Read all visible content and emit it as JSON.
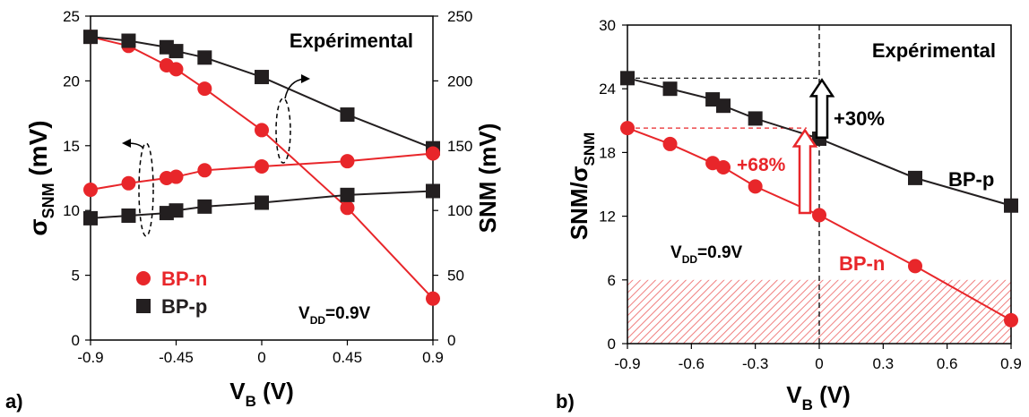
{
  "panel_labels": [
    "a)",
    "b)"
  ],
  "chart_data": [
    {
      "type": "line",
      "panel": "a)",
      "annotation_title": "Expérimental",
      "vdd": {
        "main": "V",
        "sub": "DD",
        "rest": "=0.9V"
      },
      "xlabel": {
        "main": "V",
        "sub": "B",
        "rest": " (V)"
      },
      "ylabel_left": {
        "main": "σ",
        "sub": "SNM",
        "rest": " (mV)"
      },
      "ylabel_right": "SNM (mV)",
      "xlim": [
        -0.9,
        0.9
      ],
      "x_ticks": [
        "-0.9",
        "-0.45",
        "0",
        "0.45",
        "0.9"
      ],
      "ylim_left": [
        0,
        25
      ],
      "y_ticks_left": [
        "0",
        "5",
        "10",
        "15",
        "20",
        "25"
      ],
      "ylim_right": [
        0,
        250
      ],
      "y_ticks_right": [
        "0",
        "50",
        "100",
        "150",
        "200",
        "250"
      ],
      "legend": [
        {
          "label": "BP-n",
          "color": "#e8262a",
          "marker": "circle"
        },
        {
          "label": "BP-p",
          "color": "#231f20",
          "marker": "square"
        }
      ],
      "series": [
        {
          "name": "BP-n",
          "axis": "right",
          "color": "#e8262a",
          "marker": "circle",
          "x": [
            -0.9,
            -0.7,
            -0.5,
            -0.45,
            -0.3,
            0,
            0.45,
            0.9
          ],
          "y": [
            234,
            227,
            212,
            209,
            194,
            162,
            102,
            32
          ]
        },
        {
          "name": "BP-p",
          "axis": "right",
          "color": "#231f20",
          "marker": "square",
          "x": [
            -0.9,
            -0.7,
            -0.5,
            -0.45,
            -0.3,
            0,
            0.45,
            0.9
          ],
          "y": [
            234,
            231,
            226,
            223,
            218,
            203,
            174,
            148
          ]
        },
        {
          "name": "BP-n",
          "axis": "left",
          "color": "#e8262a",
          "marker": "circle",
          "x": [
            -0.9,
            -0.7,
            -0.5,
            -0.45,
            -0.3,
            0,
            0.45,
            0.9
          ],
          "y": [
            11.6,
            12.1,
            12.5,
            12.6,
            13.1,
            13.4,
            13.8,
            14.4
          ]
        },
        {
          "name": "BP-p",
          "axis": "left",
          "color": "#231f20",
          "marker": "square",
          "x": [
            -0.9,
            -0.7,
            -0.5,
            -0.45,
            -0.3,
            0,
            0.45,
            0.9
          ],
          "y": [
            9.4,
            9.6,
            9.8,
            10.0,
            10.3,
            10.6,
            11.2,
            11.5
          ]
        }
      ]
    },
    {
      "type": "line",
      "panel": "b)",
      "annotation_title": "Expérimental",
      "vdd": {
        "main": "V",
        "sub": "DD",
        "rest": "=0.9V"
      },
      "xlabel": {
        "main": "V",
        "sub": "B",
        "rest": " (V)"
      },
      "ylabel": {
        "main": "SNM/σ",
        "sub": "SNM",
        "rest": ""
      },
      "xlim": [
        -0.9,
        0.9
      ],
      "x_ticks": [
        "-0.9",
        "-0.6",
        "-0.3",
        "0",
        "0.3",
        "0.6",
        "0.9"
      ],
      "ylim": [
        0,
        30
      ],
      "y_ticks": [
        "0",
        "6",
        "12",
        "18",
        "24",
        "30"
      ],
      "shaded_region_below": 6,
      "arrow_labels": {
        "bp_p": "+30%",
        "bp_n": "+68%"
      },
      "series": [
        {
          "name": "BP-p",
          "color": "#231f20",
          "marker": "square",
          "x": [
            -0.9,
            -0.7,
            -0.5,
            -0.45,
            -0.3,
            0,
            0.45,
            0.9
          ],
          "y": [
            25.0,
            24.0,
            23.0,
            22.4,
            21.2,
            19.3,
            15.6,
            13.0
          ]
        },
        {
          "name": "BP-n",
          "color": "#e8262a",
          "marker": "circle",
          "x": [
            -0.9,
            -0.7,
            -0.5,
            -0.45,
            -0.3,
            0,
            0.45,
            0.9
          ],
          "y": [
            20.3,
            18.8,
            17.0,
            16.6,
            14.8,
            12.1,
            7.3,
            2.2
          ]
        }
      ]
    }
  ]
}
